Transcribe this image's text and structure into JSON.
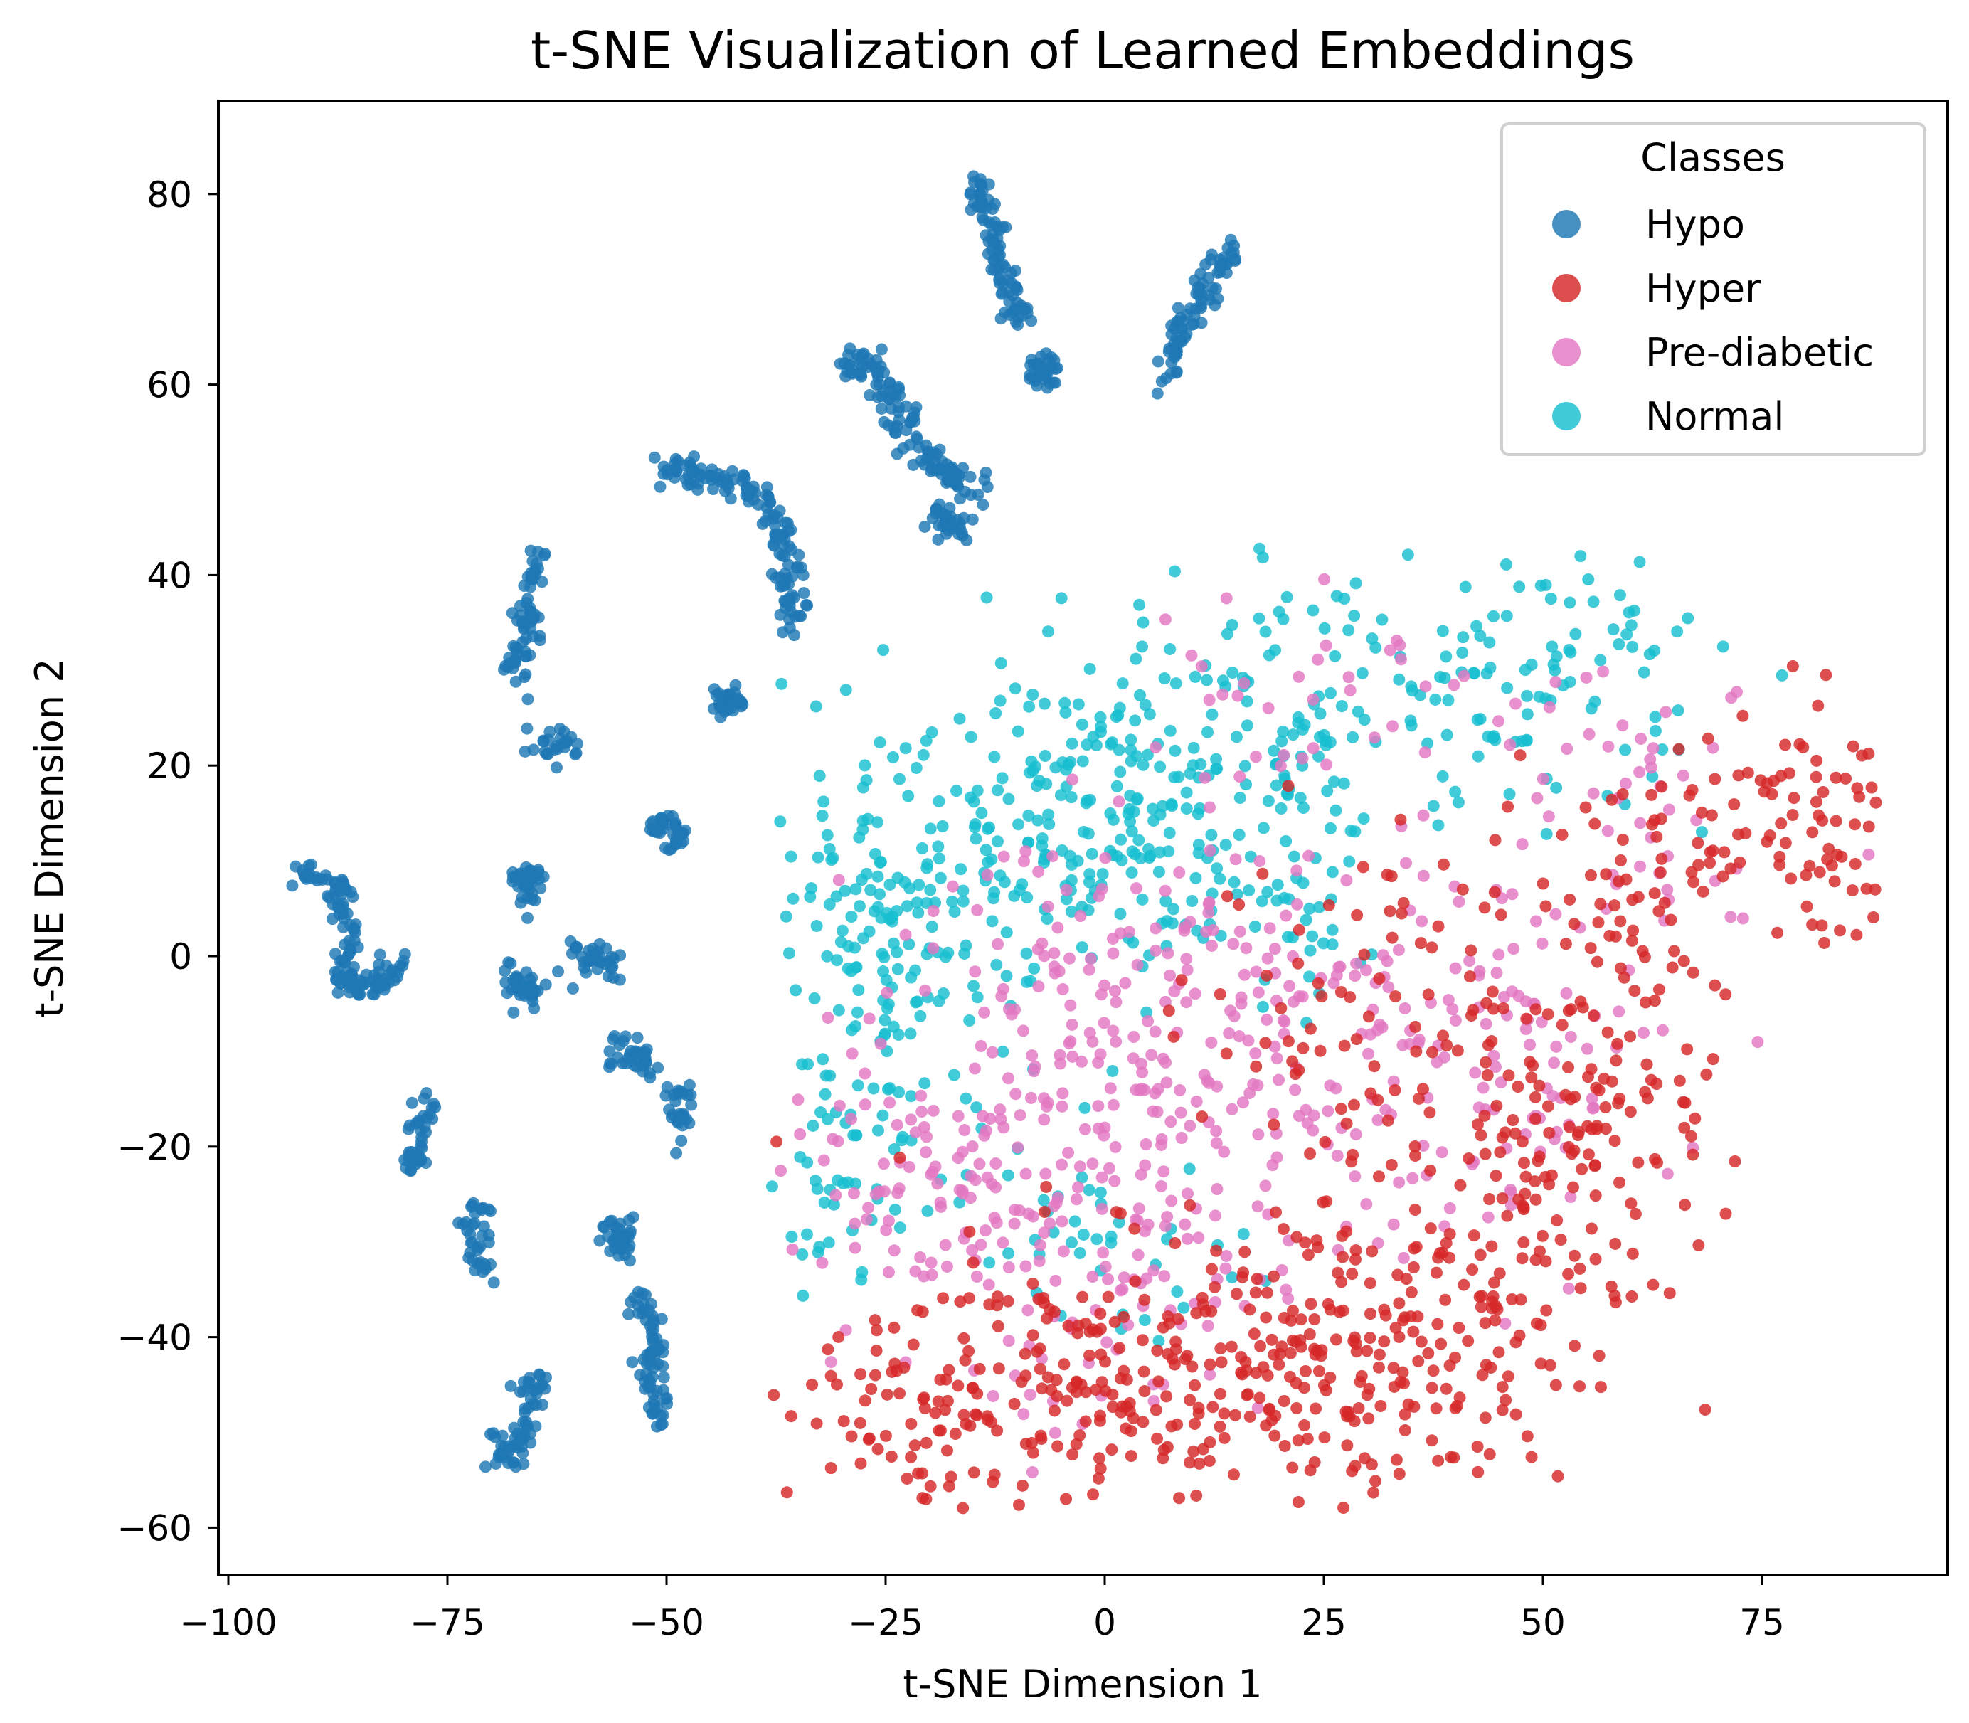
{
  "chart_data": {
    "type": "scatter",
    "title": "t-SNE Visualization of Learned Embeddings",
    "xlabel": "t-SNE Dimension 1",
    "ylabel": "t-SNE Dimension 2",
    "xlim": [
      -101,
      96
    ],
    "ylim": [
      -65,
      89
    ],
    "xticks": [
      -100,
      -75,
      -50,
      -25,
      0,
      25,
      50,
      75
    ],
    "yticks": [
      -60,
      -40,
      -20,
      0,
      20,
      40,
      60,
      80
    ],
    "xtick_labels": [
      "−100",
      "−75",
      "−50",
      "−25",
      "0",
      "25",
      "50",
      "75"
    ],
    "ytick_labels": [
      "−60",
      "−40",
      "−20",
      "0",
      "20",
      "40",
      "60",
      "80"
    ],
    "grid": false,
    "legend": {
      "title": "Classes",
      "placement": "top-right"
    },
    "series": [
      {
        "name": "Hypo",
        "color": "#1f77b4",
        "strands": [
          [
            [
              -15,
              82
            ],
            [
              -13,
              77
            ],
            [
              -11,
              70
            ],
            [
              -10,
              66
            ]
          ],
          [
            [
              -8,
              62
            ],
            [
              -6,
              61
            ]
          ],
          [
            [
              7,
              61
            ],
            [
              9,
              66
            ],
            [
              12,
              70
            ],
            [
              15,
              74
            ]
          ],
          [
            [
              -30,
              61
            ],
            [
              -27,
              63
            ],
            [
              -24,
              58
            ],
            [
              -22,
              54
            ],
            [
              -18,
              51
            ],
            [
              -14,
              48
            ]
          ],
          [
            [
              -19,
              46
            ],
            [
              -17,
              45
            ]
          ],
          [
            [
              -51,
              52
            ],
            [
              -45,
              50
            ],
            [
              -40,
              49
            ],
            [
              -37,
              44
            ],
            [
              -36,
              40
            ],
            [
              -36,
              35
            ]
          ],
          [
            [
              -44,
              27
            ],
            [
              -42,
              27
            ]
          ],
          [
            [
              -65,
              42
            ],
            [
              -66,
              35
            ],
            [
              -67,
              29
            ]
          ],
          [
            [
              -66,
              22
            ],
            [
              -61,
              22
            ]
          ],
          [
            [
              -51,
              14
            ],
            [
              -49,
              12
            ]
          ],
          [
            [
              -92,
              9
            ],
            [
              -88,
              8
            ],
            [
              -86,
              3
            ],
            [
              -87,
              -3
            ],
            [
              -83,
              -3
            ],
            [
              -79,
              0
            ]
          ],
          [
            [
              -66,
              9
            ],
            [
              -66,
              6
            ]
          ],
          [
            [
              -69,
              -2
            ],
            [
              -65,
              -4
            ]
          ],
          [
            [
              -60,
              0
            ],
            [
              -56,
              -1
            ]
          ],
          [
            [
              -56,
              -10
            ],
            [
              -52,
              -11
            ]
          ],
          [
            [
              -49,
              -14
            ],
            [
              -48,
              -19
            ]
          ],
          [
            [
              -77,
              -14
            ],
            [
              -79,
              -22
            ]
          ],
          [
            [
              -72,
              -26
            ],
            [
              -71,
              -33
            ]
          ],
          [
            [
              -56,
              -28
            ],
            [
              -55,
              -31
            ]
          ],
          [
            [
              -53,
              -36
            ],
            [
              -51,
              -42
            ],
            [
              -52,
              -46
            ],
            [
              -50,
              -49
            ]
          ],
          [
            [
              -65,
              -44
            ],
            [
              -66,
              -50
            ],
            [
              -68,
              -53
            ],
            [
              -70,
              -51
            ]
          ]
        ]
      },
      {
        "name": "Hyper",
        "color": "#d62728",
        "blobs": [
          [
            5,
            -45,
            18,
            8,
            260
          ],
          [
            -20,
            -48,
            8,
            5,
            60
          ],
          [
            30,
            -40,
            12,
            8,
            160
          ],
          [
            50,
            -25,
            8,
            10,
            110
          ],
          [
            60,
            5,
            6,
            7,
            60
          ],
          [
            80,
            15,
            6,
            6,
            90
          ],
          [
            35,
            -5,
            12,
            10,
            100
          ],
          [
            60,
            -15,
            5,
            5,
            30
          ]
        ]
      },
      {
        "name": "Pre-diabetic",
        "color": "#e377c2",
        "blobs": [
          [
            10,
            -10,
            18,
            12,
            330
          ],
          [
            -20,
            -25,
            8,
            6,
            80
          ],
          [
            0,
            -35,
            10,
            8,
            70
          ],
          [
            45,
            -10,
            10,
            10,
            80
          ],
          [
            60,
            20,
            10,
            8,
            50
          ],
          [
            20,
            30,
            8,
            6,
            30
          ]
        ]
      },
      {
        "name": "Normal",
        "color": "#17becf",
        "blobs": [
          [
            -25,
            0,
            8,
            10,
            180
          ],
          [
            0,
            15,
            12,
            8,
            200
          ],
          [
            20,
            25,
            12,
            8,
            110
          ],
          [
            50,
            30,
            10,
            7,
            100
          ],
          [
            -30,
            -25,
            4,
            6,
            40
          ],
          [
            0,
            -30,
            8,
            5,
            40
          ],
          [
            20,
            5,
            8,
            6,
            50
          ]
        ]
      }
    ]
  }
}
